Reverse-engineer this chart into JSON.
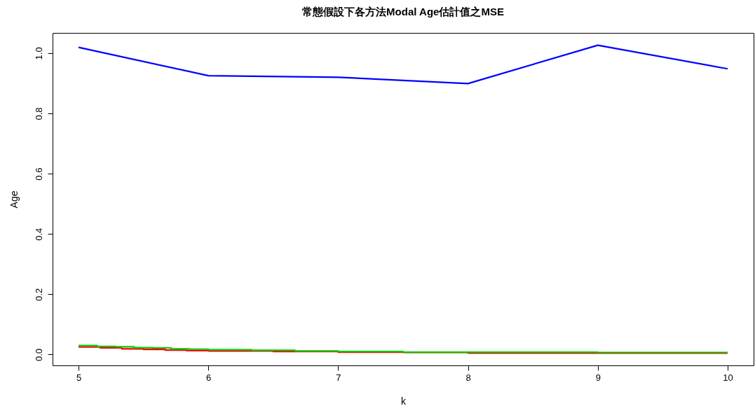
{
  "chart_data": {
    "type": "line",
    "title": "常態假設下各方法Modal Age估計值之MSE",
    "xlabel": "k",
    "ylabel": "Age",
    "xlim": [
      4.8,
      10.2
    ],
    "xticks": [
      5,
      6,
      7,
      8,
      9,
      10
    ],
    "ylim": [
      -0.036,
      1.067
    ],
    "yticks": [
      {
        "value": 0,
        "label": "0.0"
      },
      {
        "value": 0.2,
        "label": "0.2"
      },
      {
        "value": 0.4,
        "label": "0.4"
      },
      {
        "value": 0.6,
        "label": "0.6"
      },
      {
        "value": 0.8,
        "label": "0.8"
      },
      {
        "value": 1,
        "label": "1.0"
      }
    ],
    "grid": false,
    "series": [
      {
        "color": "#0000ff",
        "x": [
          5,
          6,
          7,
          8,
          9,
          10
        ],
        "values": [
          1.019,
          0.925,
          0.92,
          0.899,
          1.026,
          0.948
        ]
      },
      {
        "type": "step",
        "color": "#ff0000",
        "x": [
          5,
          5.167,
          5.333,
          5.5,
          5.667,
          5.833,
          6,
          6.5,
          7,
          7.5,
          8,
          9,
          10
        ],
        "values": [
          0.025,
          0.022,
          0.019,
          0.017,
          0.015,
          0.013,
          0.012,
          0.01,
          0.008,
          0.007,
          0.005,
          0.005,
          0.005
        ]
      },
      {
        "type": "step",
        "color": "#00cd00",
        "x": [
          5,
          5.143,
          5.286,
          5.429,
          5.571,
          5.714,
          5.857,
          6,
          6.333,
          6.667,
          7,
          7.5,
          9,
          10
        ],
        "values": [
          0.03,
          0.027,
          0.026,
          0.023,
          0.022,
          0.019,
          0.018,
          0.016,
          0.014,
          0.012,
          0.01,
          0.008,
          0.007,
          0.007
        ]
      }
    ]
  }
}
